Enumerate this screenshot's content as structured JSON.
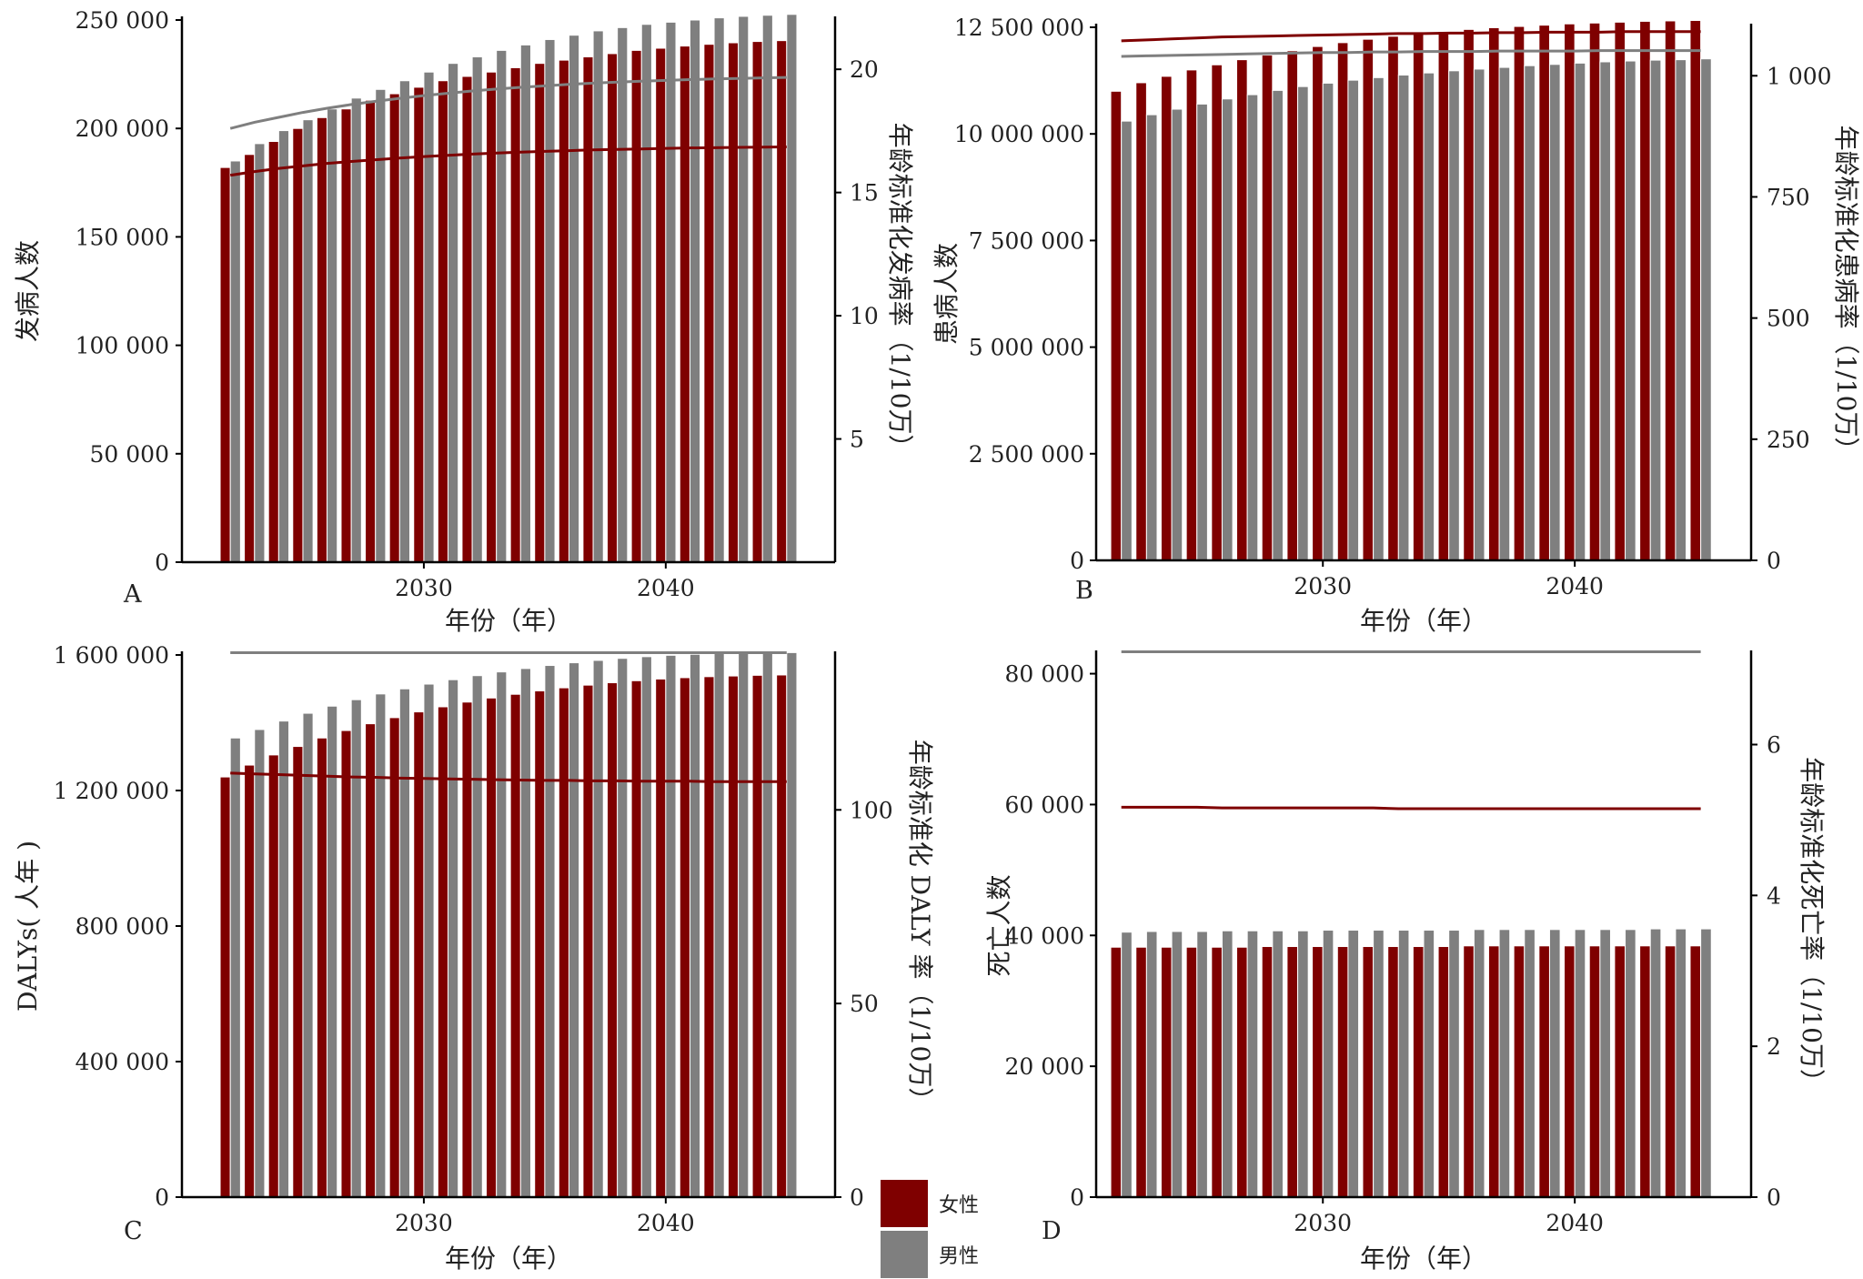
{
  "legend": {
    "items": [
      {
        "label": "女性",
        "color": "#7f0000"
      },
      {
        "label": "男性",
        "color": "#7f7f7f"
      }
    ]
  },
  "chart_data": [
    {
      "panel": "A",
      "type": "bar",
      "xlabel": "年份（年）",
      "ylabel": "发病人数",
      "y2label": "年龄标准化发病率（1/10万）",
      "ylim": [
        0,
        250000
      ],
      "y2lim": [
        0,
        22
      ],
      "yticks": [
        0,
        50000,
        100000,
        150000,
        200000,
        250000
      ],
      "yticklabels": [
        "0",
        "50 000",
        "100 000",
        "150 000",
        "200 000",
        "250 000"
      ],
      "y2ticks": [
        5,
        10,
        15,
        20
      ],
      "y2ticklabels": [
        "5",
        "10",
        "15",
        "20"
      ],
      "xlim": [
        2020,
        2047
      ],
      "xticks": [
        2030,
        2040
      ],
      "xticklabels": [
        "2030",
        "2040"
      ],
      "x": [
        2022,
        2023,
        2024,
        2025,
        2026,
        2027,
        2028,
        2029,
        2030,
        2031,
        2032,
        2033,
        2034,
        2035,
        2036,
        2037,
        2038,
        2039,
        2040,
        2041,
        2042,
        2043,
        2044,
        2045
      ],
      "series": [
        {
          "name": "女性",
          "type": "bar",
          "values": [
            182000,
            188000,
            194000,
            200000,
            205000,
            209000,
            213000,
            216000,
            219000,
            222000,
            224000,
            226000,
            228000,
            230000,
            231500,
            233000,
            234500,
            236000,
            237000,
            238000,
            238800,
            239500,
            240100,
            240500
          ]
        },
        {
          "name": "男性",
          "type": "bar",
          "values": [
            185000,
            193000,
            199000,
            204000,
            209000,
            214000,
            218000,
            222000,
            226000,
            230000,
            233000,
            236000,
            238500,
            241000,
            243000,
            245000,
            246500,
            248000,
            249000,
            250000,
            251000,
            251700,
            252200,
            252600
          ]
        },
        {
          "name": "女性",
          "type": "line",
          "axis": "y2",
          "values": [
            15.7,
            15.85,
            15.98,
            16.08,
            16.18,
            16.26,
            16.33,
            16.4,
            16.46,
            16.51,
            16.56,
            16.6,
            16.64,
            16.67,
            16.7,
            16.73,
            16.75,
            16.77,
            16.79,
            16.81,
            16.82,
            16.83,
            16.84,
            16.85
          ]
        },
        {
          "name": "男性",
          "type": "line",
          "axis": "y2",
          "values": [
            17.6,
            17.85,
            18.05,
            18.25,
            18.42,
            18.57,
            18.7,
            18.82,
            18.93,
            19.03,
            19.12,
            19.2,
            19.27,
            19.33,
            19.39,
            19.44,
            19.48,
            19.52,
            19.55,
            19.58,
            19.61,
            19.63,
            19.65,
            19.67
          ]
        }
      ]
    },
    {
      "panel": "B",
      "type": "bar",
      "xlabel": "年份（年）",
      "ylabel": "患病人数",
      "y2label": "年龄标准化患病率（1/10万）",
      "ylim": [
        0,
        12500000
      ],
      "y2lim": [
        0,
        1100
      ],
      "yticks": [
        0,
        2500000,
        5000000,
        7500000,
        10000000,
        12500000
      ],
      "yticklabels": [
        "0",
        "2 500 000",
        "5 000 000",
        "7 500 000",
        "10 000 000",
        "12 500 000"
      ],
      "y2ticks": [
        0,
        250,
        500,
        750,
        1000
      ],
      "y2ticklabels": [
        "0",
        "250",
        "500",
        "750",
        "1 000"
      ],
      "xlim": [
        2021,
        2047
      ],
      "xticks": [
        2030,
        2040
      ],
      "xticklabels": [
        "2030",
        "2040"
      ],
      "x": [
        2022,
        2023,
        2024,
        2025,
        2026,
        2027,
        2028,
        2029,
        2030,
        2031,
        2032,
        2033,
        2034,
        2035,
        2036,
        2037,
        2038,
        2039,
        2040,
        2041,
        2042,
        2043,
        2044,
        2045
      ],
      "series": [
        {
          "name": "女性",
          "type": "bar",
          "values": [
            11000000,
            11200000,
            11350000,
            11500000,
            11620000,
            11740000,
            11850000,
            11950000,
            12050000,
            12140000,
            12220000,
            12290000,
            12350000,
            12400000,
            12450000,
            12490000,
            12520000,
            12550000,
            12580000,
            12600000,
            12620000,
            12640000,
            12650000,
            12660000
          ]
        },
        {
          "name": "男性",
          "type": "bar",
          "values": [
            10300000,
            10450000,
            10580000,
            10700000,
            10820000,
            10920000,
            11020000,
            11110000,
            11190000,
            11260000,
            11320000,
            11380000,
            11430000,
            11480000,
            11520000,
            11560000,
            11600000,
            11630000,
            11660000,
            11690000,
            11710000,
            11730000,
            11740000,
            11760000
          ]
        },
        {
          "name": "女性",
          "type": "line",
          "axis": "y2",
          "values": [
            1072,
            1074,
            1076,
            1078,
            1080,
            1081,
            1082,
            1083,
            1084,
            1085,
            1086,
            1087,
            1087,
            1088,
            1088,
            1089,
            1089,
            1090,
            1090,
            1090,
            1091,
            1091,
            1091,
            1091
          ]
        },
        {
          "name": "男性",
          "type": "line",
          "axis": "y2",
          "values": [
            1040,
            1041,
            1042,
            1043,
            1044,
            1045,
            1046,
            1047,
            1048,
            1048,
            1049,
            1049,
            1050,
            1050,
            1050,
            1051,
            1051,
            1051,
            1051,
            1052,
            1052,
            1052,
            1052,
            1052
          ]
        }
      ]
    },
    {
      "panel": "C",
      "type": "bar",
      "xlabel": "年份（年）",
      "ylabel": "DALYs( 人年 )",
      "y2label": "年龄标准化 DALY 率（1/10万）",
      "ylim": [
        0,
        1600000
      ],
      "y2lim": [
        0,
        140
      ],
      "yticks": [
        0,
        400000,
        800000,
        1200000,
        1600000
      ],
      "yticklabels": [
        "0",
        "400 000",
        "800 000",
        "1 200 000",
        "1 600 000"
      ],
      "y2ticks": [
        0,
        50,
        100
      ],
      "y2ticklabels": [
        "0",
        "50",
        "100"
      ],
      "xlim": [
        2020,
        2047
      ],
      "xticks": [
        2030,
        2040
      ],
      "xticklabels": [
        "2030",
        "2040"
      ],
      "x": [
        2022,
        2023,
        2024,
        2025,
        2026,
        2027,
        2028,
        2029,
        2030,
        2031,
        2032,
        2033,
        2034,
        2035,
        2036,
        2037,
        2038,
        2039,
        2040,
        2041,
        2042,
        2043,
        2044,
        2045
      ],
      "series": [
        {
          "name": "女性",
          "type": "bar",
          "values": [
            1240000,
            1275000,
            1305000,
            1330000,
            1355000,
            1377000,
            1397000,
            1415000,
            1432000,
            1447000,
            1461000,
            1473000,
            1484000,
            1494000,
            1503000,
            1511000,
            1518000,
            1524000,
            1529000,
            1533000,
            1536000,
            1538000,
            1540000,
            1541000
          ]
        },
        {
          "name": "男性",
          "type": "bar",
          "values": [
            1355000,
            1380000,
            1405000,
            1428000,
            1449000,
            1468000,
            1485000,
            1500000,
            1514000,
            1527000,
            1539000,
            1550000,
            1560000,
            1569000,
            1577000,
            1584000,
            1590000,
            1595000,
            1599000,
            1602000,
            1604000,
            1605000,
            1606000,
            1607000
          ]
        },
        {
          "name": "女性",
          "type": "line",
          "axis": "y2",
          "values": [
            109.5,
            109.3,
            109.1,
            108.9,
            108.7,
            108.5,
            108.4,
            108.2,
            108.1,
            108,
            107.9,
            107.8,
            107.7,
            107.6,
            107.6,
            107.5,
            107.5,
            107.4,
            107.4,
            107.4,
            107.3,
            107.3,
            107.3,
            107.3
          ]
        },
        {
          "name": "男性",
          "type": "line",
          "axis": "y2",
          "values": [
            140.6,
            140.6,
            140.6,
            140.6,
            140.6,
            140.6,
            140.6,
            140.6,
            140.6,
            140.6,
            140.6,
            140.6,
            140.6,
            140.6,
            140.6,
            140.6,
            140.6,
            140.6,
            140.6,
            140.6,
            140.6,
            140.6,
            140.6,
            140.6
          ]
        }
      ]
    },
    {
      "panel": "D",
      "type": "bar",
      "xlabel": "年份（年）",
      "ylabel": "死亡人数",
      "y2label": "年龄标准化死亡率（1/10万）",
      "ylim": [
        0,
        83000
      ],
      "y2lim": [
        0,
        7.2
      ],
      "yticks": [
        0,
        20000,
        40000,
        60000,
        80000
      ],
      "yticklabels": [
        "0",
        "20 000",
        "40 000",
        "60 000",
        "80 000"
      ],
      "y2ticks": [
        0,
        2,
        4,
        6
      ],
      "y2ticklabels": [
        "0",
        "2",
        "4",
        "6"
      ],
      "xlim": [
        2021,
        2047
      ],
      "xticks": [
        2030,
        2040
      ],
      "xticklabels": [
        "2030",
        "2040"
      ],
      "x": [
        2022,
        2023,
        2024,
        2025,
        2026,
        2027,
        2028,
        2029,
        2030,
        2031,
        2032,
        2033,
        2034,
        2035,
        2036,
        2037,
        2038,
        2039,
        2040,
        2041,
        2042,
        2043,
        2044,
        2045
      ],
      "series": [
        {
          "name": "女性",
          "type": "bar",
          "values": [
            38200,
            38200,
            38200,
            38200,
            38200,
            38200,
            38300,
            38300,
            38300,
            38300,
            38300,
            38300,
            38300,
            38300,
            38400,
            38400,
            38400,
            38400,
            38400,
            38400,
            38400,
            38400,
            38400,
            38400
          ]
        },
        {
          "name": "男性",
          "type": "bar",
          "values": [
            40500,
            40600,
            40600,
            40600,
            40700,
            40700,
            40700,
            40700,
            40800,
            40800,
            40800,
            40800,
            40800,
            40800,
            40900,
            40900,
            40900,
            40900,
            40900,
            40900,
            40900,
            41000,
            41000,
            41000
          ]
        },
        {
          "name": "女性",
          "type": "line",
          "axis": "y2",
          "values": [
            5.17,
            5.17,
            5.17,
            5.17,
            5.16,
            5.16,
            5.16,
            5.16,
            5.16,
            5.16,
            5.16,
            5.15,
            5.15,
            5.15,
            5.15,
            5.15,
            5.15,
            5.15,
            5.15,
            5.15,
            5.15,
            5.15,
            5.15,
            5.15
          ]
        },
        {
          "name": "男性",
          "type": "line",
          "axis": "y2",
          "values": [
            7.23,
            7.23,
            7.23,
            7.23,
            7.23,
            7.23,
            7.23,
            7.23,
            7.23,
            7.23,
            7.23,
            7.23,
            7.23,
            7.23,
            7.23,
            7.23,
            7.23,
            7.23,
            7.23,
            7.23,
            7.23,
            7.23,
            7.23,
            7.23
          ]
        }
      ]
    }
  ]
}
